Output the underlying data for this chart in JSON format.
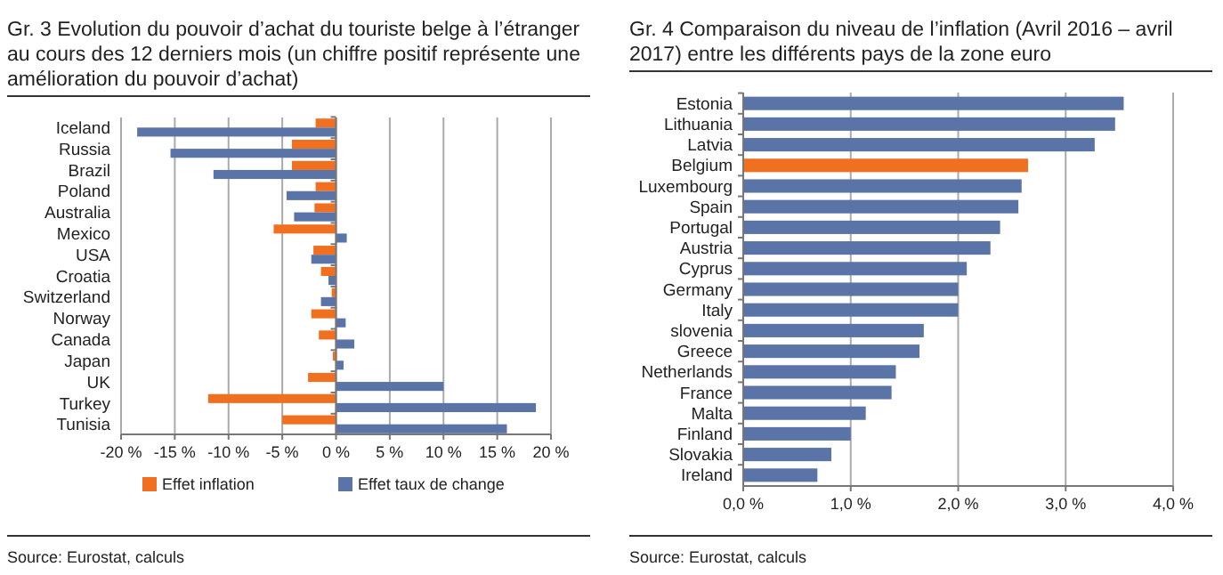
{
  "chart_data": [
    {
      "type": "bar",
      "orientation": "horizontal",
      "title": "Gr. 3    Evolution du pouvoir d’achat du touriste belge à l’étranger au cours des 12 derniers mois (un chiffre positif représente une amélioration du pouvoir d’achat)",
      "categories": [
        "Iceland",
        "Russia",
        "Brazil",
        "Poland",
        "Australia",
        "Mexico",
        "USA",
        "Croatia",
        "Switzerland",
        "Norway",
        "Canada",
        "Japan",
        "UK",
        "Turkey",
        "Tunisia"
      ],
      "series": [
        {
          "name": "Effet inflation",
          "color": "#f07020",
          "values": [
            -1.9,
            -4.1,
            -4.1,
            -1.9,
            -2.0,
            -5.8,
            -2.1,
            -1.4,
            -0.4,
            -2.3,
            -1.6,
            -0.3,
            -2.6,
            -11.9,
            -5.0
          ]
        },
        {
          "name": "Effet taux de change",
          "color": "#5b74a8",
          "values": [
            -18.5,
            -15.4,
            -11.4,
            -4.6,
            -3.9,
            1.0,
            -2.3,
            -0.7,
            -1.4,
            0.9,
            1.7,
            0.7,
            10.0,
            18.6,
            15.9
          ]
        }
      ],
      "xlim": [
        -20,
        20
      ],
      "xticks": [
        {
          "value": -20,
          "label": "-20 %"
        },
        {
          "value": -15,
          "label": "-15 %"
        },
        {
          "value": -10,
          "label": "-10 %"
        },
        {
          "value": -5,
          "label": "-5 %"
        },
        {
          "value": 0,
          "label": "0 %"
        },
        {
          "value": 5,
          "label": "5 %"
        },
        {
          "value": 10,
          "label": "10 %"
        },
        {
          "value": 15,
          "label": "15 %"
        },
        {
          "value": 20,
          "label": "20 %"
        }
      ],
      "grid": "x",
      "legend": "bottom",
      "annotations": [
        "Source: Eurostat, calculs"
      ]
    },
    {
      "type": "bar",
      "orientation": "horizontal",
      "title": "Gr. 4    Comparaison du niveau de l’inflation (Avril 2016 – avril 2017) entre les différents pays de la zone euro",
      "categories": [
        "Estonia",
        "Lithuania",
        "Latvia",
        "Belgium",
        "Luxembourg",
        "Spain",
        "Portugal",
        "Austria",
        "Cyprus",
        "Germany",
        "Italy",
        "slovenia",
        "Greece",
        "Netherlands",
        "France",
        "Malta",
        "Finland",
        "Slovakia",
        "Ireland"
      ],
      "values": [
        3.54,
        3.46,
        3.27,
        2.65,
        2.59,
        2.56,
        2.39,
        2.3,
        2.08,
        2.0,
        2.0,
        1.68,
        1.64,
        1.42,
        1.38,
        1.14,
        1.0,
        0.82,
        0.69
      ],
      "colors": [
        "#5b74a8",
        "#5b74a8",
        "#5b74a8",
        "#f07020",
        "#5b74a8",
        "#5b74a8",
        "#5b74a8",
        "#5b74a8",
        "#5b74a8",
        "#5b74a8",
        "#5b74a8",
        "#5b74a8",
        "#5b74a8",
        "#5b74a8",
        "#5b74a8",
        "#5b74a8",
        "#5b74a8",
        "#5b74a8",
        "#5b74a8"
      ],
      "xlim": [
        0,
        4
      ],
      "xticks": [
        {
          "value": 0,
          "label": "0,0 %"
        },
        {
          "value": 1,
          "label": "1,0 %"
        },
        {
          "value": 2,
          "label": "2,0 %"
        },
        {
          "value": 3,
          "label": "3,0 %"
        },
        {
          "value": 4,
          "label": "4,0 %"
        }
      ],
      "grid": "x",
      "annotations": [
        "Source: Eurostat, calculs"
      ]
    }
  ]
}
